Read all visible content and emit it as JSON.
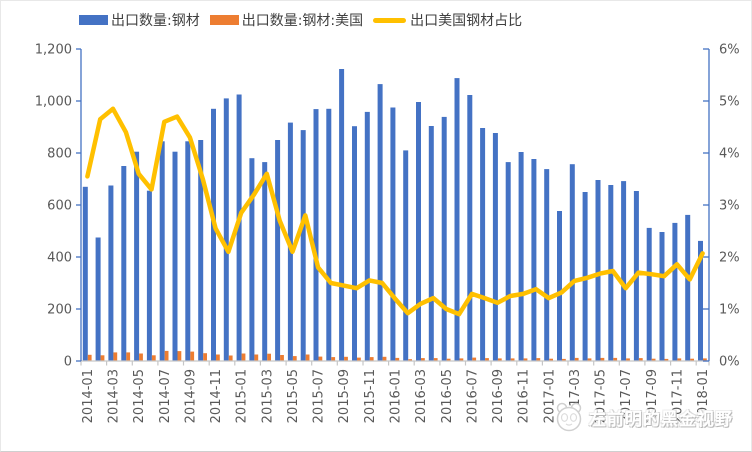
{
  "watermark": {
    "text": "左前明的黑金视野",
    "logo": "panda-logo"
  },
  "chart_data": {
    "type": "combo",
    "title": "",
    "legend_position": "top",
    "grid": false,
    "background": "#ffffff",
    "axis_label_color": "#595959",
    "legend_text_color": "#404040",
    "category_axis_color": "#c6c6c6",
    "value_axis_color": "#4472c4",
    "x": [
      "2014-01",
      "2014-02",
      "2014-03",
      "2014-04",
      "2014-05",
      "2014-06",
      "2014-07",
      "2014-08",
      "2014-09",
      "2014-10",
      "2014-11",
      "2014-12",
      "2015-01",
      "2015-02",
      "2015-03",
      "2015-04",
      "2015-05",
      "2015-06",
      "2015-07",
      "2015-08",
      "2015-09",
      "2015-10",
      "2015-11",
      "2015-12",
      "2016-01",
      "2016-02",
      "2016-03",
      "2016-04",
      "2016-05",
      "2016-06",
      "2016-07",
      "2016-08",
      "2016-09",
      "2016-10",
      "2016-11",
      "2016-12",
      "2017-01",
      "2017-02",
      "2017-03",
      "2017-04",
      "2017-05",
      "2017-06",
      "2017-07",
      "2017-08",
      "2017-09",
      "2017-10",
      "2017-11",
      "2017-12",
      "2018-01"
    ],
    "x_tick_labels": [
      "2014-01",
      "2014-03",
      "2014-05",
      "2014-07",
      "2014-09",
      "2014-11",
      "2015-01",
      "2015-03",
      "2015-05",
      "2015-07",
      "2015-09",
      "2015-11",
      "2016-01",
      "2016-03",
      "2016-05",
      "2016-07",
      "2016-09",
      "2016-11",
      "2017-01",
      "2017-03",
      "2017-05",
      "2017-07",
      "2017-09",
      "2017-11",
      "2018-01"
    ],
    "series": [
      {
        "name": "出口数量:钢材",
        "type": "bar",
        "axis": "left",
        "color": "#4472c4",
        "values": [
          670,
          475,
          675,
          750,
          805,
          655,
          845,
          805,
          845,
          850,
          970,
          1010,
          1025,
          780,
          765,
          850,
          917,
          888,
          969,
          970,
          1123,
          903,
          958,
          1065,
          975,
          810,
          996,
          904,
          939,
          1088,
          1023,
          896,
          877,
          765,
          804,
          777,
          738,
          577,
          757,
          650,
          696,
          677,
          692,
          654,
          512,
          496,
          531,
          562,
          462
        ]
      },
      {
        "name": "出口数量:钢材:美国",
        "type": "bar",
        "axis": "left",
        "color": "#ed7d31",
        "values": [
          24,
          22,
          33,
          33,
          29,
          22,
          39,
          38,
          36,
          30,
          25,
          21,
          29,
          25,
          28,
          23,
          19,
          25,
          17,
          15,
          16,
          13,
          15,
          16,
          12,
          7,
          11,
          11,
          9,
          10,
          13,
          11,
          10,
          10,
          10,
          11,
          9,
          8,
          12,
          10,
          12,
          12,
          10,
          11,
          9,
          8,
          10,
          9,
          10
        ]
      },
      {
        "name": "出口美国钢材占比",
        "type": "line",
        "axis": "right",
        "color": "#ffc000",
        "values": [
          3.55,
          4.65,
          4.85,
          4.4,
          3.6,
          3.3,
          4.6,
          4.7,
          4.3,
          3.5,
          2.55,
          2.1,
          2.85,
          3.2,
          3.6,
          2.7,
          2.1,
          2.8,
          1.8,
          1.5,
          1.45,
          1.4,
          1.55,
          1.5,
          1.2,
          0.92,
          1.1,
          1.21,
          1.0,
          0.9,
          1.29,
          1.21,
          1.12,
          1.25,
          1.29,
          1.38,
          1.21,
          1.32,
          1.54,
          1.6,
          1.68,
          1.73,
          1.4,
          1.7,
          1.67,
          1.63,
          1.86,
          1.57,
          2.07
        ]
      }
    ],
    "left_axis": {
      "min": 0,
      "max": 1200,
      "step": 200,
      "tick_labels": [
        "0",
        "200",
        "400",
        "600",
        "800",
        "1,000",
        "1,200"
      ]
    },
    "right_axis": {
      "min": 0,
      "max": 6,
      "step": 1,
      "tick_labels": [
        "0%",
        "1%",
        "2%",
        "3%",
        "4%",
        "5%",
        "6%"
      ]
    }
  }
}
